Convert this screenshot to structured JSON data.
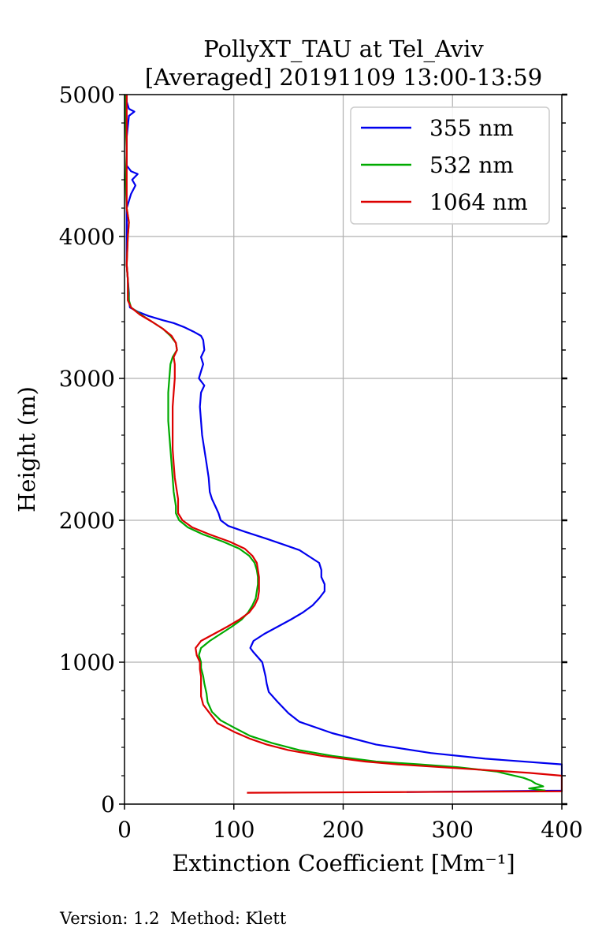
{
  "chart_data": {
    "type": "line",
    "title": [
      "PollyXT_TAU at Tel_Aviv",
      "[Averaged] 20191109 13:00-13:59"
    ],
    "xlabel": "Extinction Coefficient [Mm⁻¹]",
    "ylabel": "Height (m)",
    "xlim": [
      0,
      400
    ],
    "ylim": [
      0,
      5000
    ],
    "xticks": [
      0,
      100,
      200,
      300,
      400
    ],
    "yticks": [
      0,
      1000,
      2000,
      3000,
      4000,
      5000
    ],
    "xtick_labels": [
      "0",
      "100",
      "200",
      "300",
      "400"
    ],
    "ytick_labels": [
      "0",
      "1000",
      "2000",
      "3000",
      "4000",
      "5000"
    ],
    "grid": true,
    "legend_position": "top-right",
    "series": [
      {
        "name": "355 nm",
        "color": "#0000ee",
        "points": [
          [
            258,
            85
          ],
          [
            400,
            95
          ],
          [
            400,
            280
          ],
          [
            330,
            320
          ],
          [
            280,
            360
          ],
          [
            230,
            420
          ],
          [
            190,
            500
          ],
          [
            160,
            580
          ],
          [
            150,
            640
          ],
          [
            140,
            720
          ],
          [
            132,
            790
          ],
          [
            130,
            850
          ],
          [
            129,
            900
          ],
          [
            126,
            1000
          ],
          [
            118,
            1070
          ],
          [
            115,
            1100
          ],
          [
            118,
            1150
          ],
          [
            128,
            1200
          ],
          [
            140,
            1250
          ],
          [
            152,
            1300
          ],
          [
            163,
            1350
          ],
          [
            172,
            1400
          ],
          [
            178,
            1450
          ],
          [
            183,
            1500
          ],
          [
            183,
            1550
          ],
          [
            180,
            1600
          ],
          [
            180,
            1650
          ],
          [
            178,
            1700
          ],
          [
            168,
            1750
          ],
          [
            160,
            1790
          ],
          [
            145,
            1830
          ],
          [
            130,
            1870
          ],
          [
            110,
            1920
          ],
          [
            95,
            1960
          ],
          [
            88,
            2000
          ],
          [
            86,
            2050
          ],
          [
            83,
            2100
          ],
          [
            80,
            2150
          ],
          [
            78,
            2200
          ],
          [
            77,
            2300
          ],
          [
            75,
            2400
          ],
          [
            73,
            2500
          ],
          [
            71,
            2600
          ],
          [
            70,
            2700
          ],
          [
            69,
            2800
          ],
          [
            70,
            2900
          ],
          [
            73,
            2950
          ],
          [
            68,
            3000
          ],
          [
            70,
            3050
          ],
          [
            72,
            3100
          ],
          [
            70,
            3150
          ],
          [
            73,
            3200
          ],
          [
            72,
            3270
          ],
          [
            70,
            3300
          ],
          [
            63,
            3330
          ],
          [
            55,
            3360
          ],
          [
            45,
            3390
          ],
          [
            35,
            3410
          ],
          [
            22,
            3440
          ],
          [
            12,
            3470
          ],
          [
            5,
            3500
          ],
          [
            4,
            3550
          ],
          [
            4,
            3600
          ],
          [
            3,
            3700
          ],
          [
            2,
            3800
          ],
          [
            2,
            4000
          ],
          [
            2,
            4200
          ],
          [
            6,
            4300
          ],
          [
            10,
            4360
          ],
          [
            7,
            4400
          ],
          [
            12,
            4440
          ],
          [
            6,
            4460
          ],
          [
            2,
            4500
          ],
          [
            2,
            4700
          ],
          [
            4,
            4850
          ],
          [
            9,
            4880
          ],
          [
            4,
            4900
          ],
          [
            2,
            4950
          ],
          [
            2,
            5000
          ]
        ]
      },
      {
        "name": "532 nm",
        "color": "#00aa00",
        "points": [
          [
            385,
            95
          ],
          [
            370,
            110
          ],
          [
            383,
            125
          ],
          [
            376,
            145
          ],
          [
            372,
            165
          ],
          [
            365,
            185
          ],
          [
            340,
            230
          ],
          [
            305,
            260
          ],
          [
            270,
            280
          ],
          [
            230,
            300
          ],
          [
            190,
            340
          ],
          [
            160,
            380
          ],
          [
            135,
            430
          ],
          [
            115,
            480
          ],
          [
            100,
            540
          ],
          [
            88,
            590
          ],
          [
            80,
            650
          ],
          [
            76,
            720
          ],
          [
            75,
            780
          ],
          [
            73,
            850
          ],
          [
            72,
            900
          ],
          [
            70,
            960
          ],
          [
            70,
            1000
          ],
          [
            68,
            1050
          ],
          [
            70,
            1100
          ],
          [
            78,
            1150
          ],
          [
            88,
            1200
          ],
          [
            98,
            1250
          ],
          [
            107,
            1300
          ],
          [
            113,
            1350
          ],
          [
            117,
            1400
          ],
          [
            120,
            1450
          ],
          [
            121,
            1500
          ],
          [
            122,
            1550
          ],
          [
            122,
            1600
          ],
          [
            121,
            1650
          ],
          [
            119,
            1700
          ],
          [
            114,
            1750
          ],
          [
            105,
            1800
          ],
          [
            90,
            1850
          ],
          [
            72,
            1900
          ],
          [
            58,
            1950
          ],
          [
            50,
            2000
          ],
          [
            47,
            2050
          ],
          [
            47,
            2100
          ],
          [
            46,
            2150
          ],
          [
            45,
            2200
          ],
          [
            44,
            2300
          ],
          [
            43,
            2400
          ],
          [
            42,
            2500
          ],
          [
            41,
            2600
          ],
          [
            40,
            2700
          ],
          [
            40,
            2800
          ],
          [
            40,
            2900
          ],
          [
            41,
            3000
          ],
          [
            42,
            3100
          ],
          [
            44,
            3150
          ],
          [
            48,
            3200
          ],
          [
            47,
            3250
          ],
          [
            42,
            3300
          ],
          [
            35,
            3350
          ],
          [
            25,
            3400
          ],
          [
            15,
            3450
          ],
          [
            6,
            3500
          ],
          [
            4,
            3550
          ],
          [
            3,
            3700
          ],
          [
            2,
            3800
          ],
          [
            3,
            4000
          ],
          [
            4,
            4100
          ],
          [
            2,
            4200
          ],
          [
            1,
            4400
          ],
          [
            2,
            4600
          ],
          [
            1,
            4800
          ],
          [
            1,
            5000
          ]
        ]
      },
      {
        "name": "1064 nm",
        "color": "#dd0000",
        "points": [
          [
            112,
            80
          ],
          [
            260,
            85
          ],
          [
            400,
            90
          ],
          [
            400,
            200
          ],
          [
            370,
            220
          ],
          [
            330,
            240
          ],
          [
            290,
            260
          ],
          [
            250,
            280
          ],
          [
            220,
            300
          ],
          [
            180,
            340
          ],
          [
            150,
            380
          ],
          [
            130,
            420
          ],
          [
            115,
            460
          ],
          [
            100,
            510
          ],
          [
            85,
            570
          ],
          [
            78,
            640
          ],
          [
            72,
            700
          ],
          [
            70,
            760
          ],
          [
            70,
            800
          ],
          [
            70,
            850
          ],
          [
            70,
            900
          ],
          [
            69,
            950
          ],
          [
            69,
            1000
          ],
          [
            66,
            1050
          ],
          [
            65,
            1100
          ],
          [
            70,
            1150
          ],
          [
            82,
            1200
          ],
          [
            94,
            1250
          ],
          [
            105,
            1300
          ],
          [
            114,
            1350
          ],
          [
            119,
            1400
          ],
          [
            122,
            1450
          ],
          [
            123,
            1500
          ],
          [
            123,
            1550
          ],
          [
            123,
            1600
          ],
          [
            122,
            1650
          ],
          [
            121,
            1700
          ],
          [
            117,
            1750
          ],
          [
            110,
            1800
          ],
          [
            96,
            1850
          ],
          [
            78,
            1900
          ],
          [
            62,
            1950
          ],
          [
            53,
            2000
          ],
          [
            49,
            2050
          ],
          [
            49,
            2100
          ],
          [
            49,
            2150
          ],
          [
            48,
            2200
          ],
          [
            46,
            2300
          ],
          [
            45,
            2400
          ],
          [
            44,
            2500
          ],
          [
            44,
            2600
          ],
          [
            44,
            2700
          ],
          [
            44,
            2800
          ],
          [
            45,
            2900
          ],
          [
            46,
            3000
          ],
          [
            46,
            3100
          ],
          [
            45,
            3150
          ],
          [
            48,
            3200
          ],
          [
            47,
            3250
          ],
          [
            43,
            3300
          ],
          [
            35,
            3350
          ],
          [
            25,
            3400
          ],
          [
            14,
            3450
          ],
          [
            6,
            3500
          ],
          [
            3,
            3550
          ],
          [
            3,
            3700
          ],
          [
            2,
            3800
          ],
          [
            3,
            4000
          ],
          [
            4,
            4100
          ],
          [
            2,
            4200
          ],
          [
            2,
            4500
          ],
          [
            2,
            4800
          ],
          [
            2,
            5000
          ]
        ]
      }
    ]
  },
  "footer": "Version: 1.2  Method: Klett"
}
